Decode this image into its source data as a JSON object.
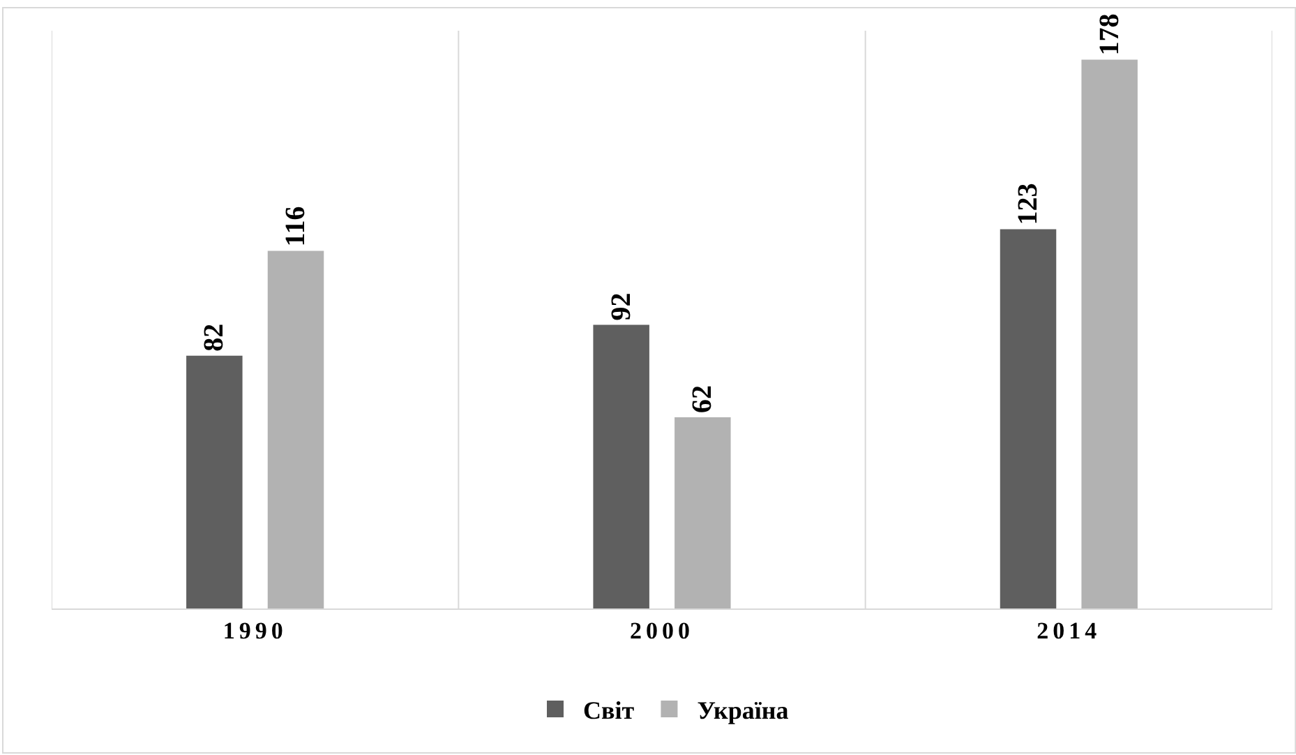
{
  "chart_data": {
    "type": "bar",
    "categories": [
      "1990",
      "2000",
      "2014"
    ],
    "series": [
      {
        "name": "Світ",
        "color": "#5f5f5f",
        "values": [
          82,
          92,
          123
        ]
      },
      {
        "name": "Україна",
        "color": "#b2b2b2",
        "values": [
          116,
          62,
          178
        ]
      }
    ],
    "data_labels": true,
    "grid": "x",
    "legend": "bottom"
  }
}
